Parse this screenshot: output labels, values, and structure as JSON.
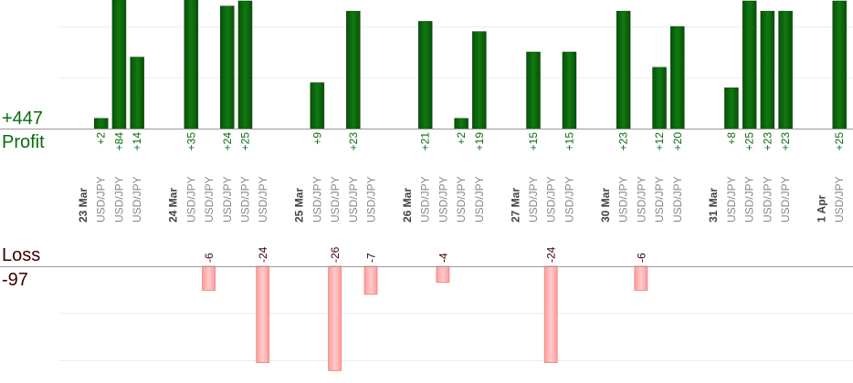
{
  "summary": {
    "profit_total": "+447",
    "profit_label": "Profit",
    "loss_label": "Loss",
    "loss_total": "-97"
  },
  "colors": {
    "profit_bar": "#0d650d",
    "profit_text": "#0b6b0b",
    "loss_bar": "#ffb3b3",
    "loss_bar_edge": "#f08080",
    "loss_text": "#3a0000",
    "grid": "#eeeeee",
    "axis": "#999999",
    "symbol_text": "#888888",
    "date_text": "#444444"
  },
  "chart_data": {
    "type": "bar",
    "title": "",
    "xlabel": "",
    "ylabel": "",
    "grid": true,
    "legend": "none",
    "profit_ylim": [
      0,
      25
    ],
    "loss_ylim": [
      -26,
      0
    ],
    "dates": [
      "23 Mar",
      "24 Mar",
      "25 Mar",
      "26 Mar",
      "27 Mar",
      "30 Mar",
      "31 Mar",
      "1 Apr"
    ],
    "slots": [
      {
        "date": "23 Mar"
      },
      {
        "symbol": "USD/JPY",
        "value": 2,
        "label": "+2"
      },
      {
        "symbol": "USD/JPY",
        "value": 84,
        "label": "+84"
      },
      {
        "symbol": "USD/JPY",
        "value": 14,
        "label": "+14"
      },
      null,
      {
        "date": "24 Mar"
      },
      {
        "symbol": "USD/JPY",
        "value": 35,
        "label": "+35"
      },
      {
        "symbol": "USD/JPY",
        "value": -6,
        "label": "-6"
      },
      {
        "symbol": "USD/JPY",
        "value": 24,
        "label": "+24"
      },
      {
        "symbol": "USD/JPY",
        "value": 25,
        "label": "+25"
      },
      {
        "symbol": "USD/JPY",
        "value": -24,
        "label": "-24"
      },
      null,
      {
        "date": "25 Mar"
      },
      {
        "symbol": "USD/JPY",
        "value": 9,
        "label": "+9"
      },
      {
        "symbol": "USD/JPY",
        "value": -26,
        "label": "-26"
      },
      {
        "symbol": "USD/JPY",
        "value": 23,
        "label": "+23"
      },
      {
        "symbol": "USD/JPY",
        "value": -7,
        "label": "-7"
      },
      null,
      {
        "date": "26 Mar"
      },
      {
        "symbol": "USD/JPY",
        "value": 21,
        "label": "+21"
      },
      {
        "symbol": "USD/JPY",
        "value": -4,
        "label": "-4"
      },
      {
        "symbol": "USD/JPY",
        "value": 2,
        "label": "+2"
      },
      {
        "symbol": "USD/JPY",
        "value": 19,
        "label": "+19"
      },
      null,
      {
        "date": "27 Mar"
      },
      {
        "symbol": "USD/JPY",
        "value": 15,
        "label": "+15"
      },
      {
        "symbol": "USD/JPY",
        "value": -24,
        "label": "-24"
      },
      {
        "symbol": "USD/JPY",
        "value": 15,
        "label": "+15"
      },
      null,
      {
        "date": "30 Mar"
      },
      {
        "symbol": "USD/JPY",
        "value": 23,
        "label": "+23"
      },
      {
        "symbol": "USD/JPY",
        "value": -6,
        "label": "-6"
      },
      {
        "symbol": "USD/JPY",
        "value": 12,
        "label": "+12"
      },
      {
        "symbol": "USD/JPY",
        "value": 20,
        "label": "+20"
      },
      null,
      {
        "date": "31 Mar"
      },
      {
        "symbol": "USD/JPY",
        "value": 8,
        "label": "+8"
      },
      {
        "symbol": "USD/JPY",
        "value": 25,
        "label": "+25"
      },
      {
        "symbol": "USD/JPY",
        "value": 23,
        "label": "+23"
      },
      {
        "symbol": "USD/JPY",
        "value": 23,
        "label": "+23"
      },
      null,
      {
        "date": "1 Apr"
      },
      {
        "symbol": "USD/JPY",
        "value": 25,
        "label": "+25"
      }
    ]
  }
}
